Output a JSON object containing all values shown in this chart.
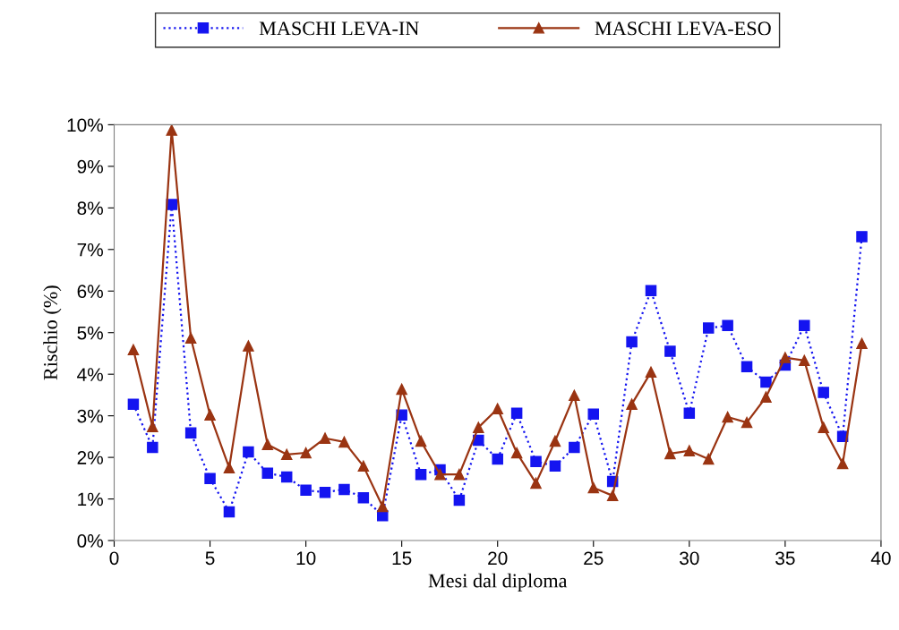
{
  "chart_data": {
    "type": "line",
    "xlabel": "Mesi dal diploma",
    "ylabel": "Rischio (%)",
    "x": [
      1,
      2,
      3,
      4,
      5,
      6,
      7,
      8,
      9,
      10,
      11,
      12,
      13,
      14,
      15,
      16,
      17,
      18,
      19,
      20,
      21,
      22,
      23,
      24,
      25,
      26,
      27,
      28,
      29,
      30,
      31,
      32,
      33,
      34,
      35,
      36,
      37,
      38,
      39
    ],
    "series": [
      {
        "name": "MASCHI LEVA-IN",
        "color": "#1414f0",
        "marker": "square",
        "line_style": "dotted",
        "values": [
          3.28,
          2.24,
          8.08,
          2.59,
          1.49,
          0.69,
          2.13,
          1.62,
          1.53,
          1.21,
          1.16,
          1.23,
          1.03,
          0.6,
          3.02,
          1.59,
          1.7,
          0.97,
          2.41,
          1.96,
          3.06,
          1.9,
          1.79,
          2.24,
          3.04,
          1.42,
          4.78,
          6.01,
          4.55,
          3.06,
          5.11,
          5.17,
          4.18,
          3.81,
          4.22,
          5.17,
          3.56,
          2.5,
          7.31
        ]
      },
      {
        "name": "MASCHI LEVA-ESO",
        "color": "#9a3412",
        "marker": "triangle",
        "line_style": "solid",
        "values": [
          4.59,
          2.74,
          9.87,
          4.87,
          3.02,
          1.75,
          4.68,
          2.31,
          2.07,
          2.11,
          2.46,
          2.37,
          1.79,
          0.82,
          3.64,
          2.39,
          1.59,
          1.59,
          2.72,
          3.17,
          2.11,
          1.38,
          2.39,
          3.49,
          1.27,
          1.08,
          3.28,
          4.05,
          2.09,
          2.16,
          1.96,
          2.97,
          2.84,
          3.45,
          4.4,
          4.33,
          2.72,
          1.85,
          4.74
        ]
      }
    ],
    "xlim": [
      0,
      40
    ],
    "xticks": [
      0,
      5,
      10,
      15,
      20,
      25,
      30,
      35,
      40
    ],
    "ylim": [
      0,
      10
    ],
    "yticks": [
      {
        "value": 0,
        "label": "0%"
      },
      {
        "value": 1,
        "label": "1%"
      },
      {
        "value": 2,
        "label": "2%"
      },
      {
        "value": 3,
        "label": "3%"
      },
      {
        "value": 4,
        "label": "4%"
      },
      {
        "value": 5,
        "label": "5%"
      },
      {
        "value": 6,
        "label": "6%"
      },
      {
        "value": 7,
        "label": "7%"
      },
      {
        "value": 8,
        "label": "8%"
      },
      {
        "value": 9,
        "label": "9%"
      },
      {
        "value": 10,
        "label": "10%"
      }
    ],
    "legend": "top"
  }
}
